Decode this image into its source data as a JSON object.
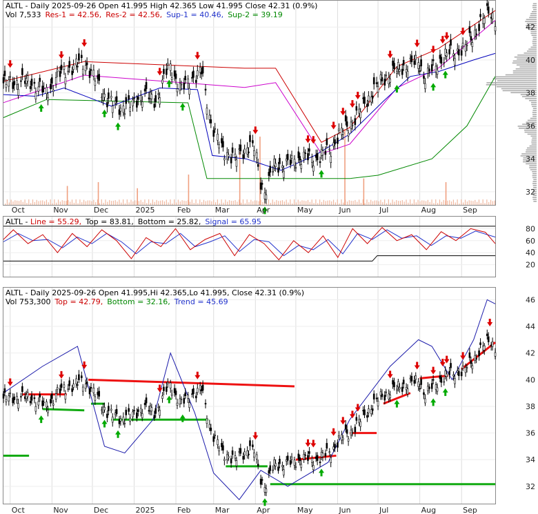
{
  "chart_data": [
    {
      "type": "candlestick",
      "panel": "price",
      "header": {
        "ticker": "ALTL",
        "line1": "ALTL - Daily 2025-09-26 Open 41.995  High 42.365  Low 41.995  Close 42.31 (0.9%)",
        "vol_label": "Vol 7,533",
        "res1_label": "Res-1 = 42.56,",
        "res2_label": "Res-2 = 42.56,",
        "sup1_label": "Sup-1 = 40.46,",
        "sup2_label": "Sup-2 = 39.19"
      },
      "x_labels": [
        "Oct",
        "Nov",
        "Dec",
        "2025",
        "Feb",
        "Mar",
        "Apr",
        "May",
        "Jun",
        "Jul",
        "Aug",
        "Sep"
      ],
      "y_ticks": [
        32,
        34,
        36,
        38,
        40,
        42
      ],
      "ylim": [
        31.2,
        43.6
      ],
      "close_points": [
        [
          "2024-09-26",
          38.6
        ],
        [
          "2024-10-15",
          38.7
        ],
        [
          "2024-10-28",
          38.0
        ],
        [
          "2024-11-05",
          39.0
        ],
        [
          "2024-11-12",
          39.4
        ],
        [
          "2024-11-25",
          39.9
        ],
        [
          "2024-12-05",
          38.6
        ],
        [
          "2024-12-12",
          37.6
        ],
        [
          "2024-12-20",
          37.1
        ],
        [
          "2024-12-31",
          37.3
        ],
        [
          "2025-01-08",
          38.0
        ],
        [
          "2025-01-17",
          37.5
        ],
        [
          "2025-01-27",
          39.7
        ],
        [
          "2025-02-05",
          38.2
        ],
        [
          "2025-02-13",
          38.9
        ],
        [
          "2025-02-20",
          39.3
        ],
        [
          "2025-02-27",
          36.2
        ],
        [
          "2025-03-07",
          34.6
        ],
        [
          "2025-03-17",
          34.0
        ],
        [
          "2025-03-27",
          34.8
        ],
        [
          "2025-04-01",
          34.6
        ],
        [
          "2025-04-04",
          32.8
        ],
        [
          "2025-04-08",
          32.0
        ],
        [
          "2025-04-15",
          33.6
        ],
        [
          "2025-04-25",
          33.7
        ],
        [
          "2025-05-06",
          34.1
        ],
        [
          "2025-05-16",
          34.0
        ],
        [
          "2025-05-27",
          34.6
        ],
        [
          "2025-06-03",
          35.6
        ],
        [
          "2025-06-12",
          36.2
        ],
        [
          "2025-06-23",
          37.6
        ],
        [
          "2025-07-01",
          38.5
        ],
        [
          "2025-07-10",
          39.2
        ],
        [
          "2025-07-21",
          39.6
        ],
        [
          "2025-07-31",
          39.9
        ],
        [
          "2025-08-05",
          38.9
        ],
        [
          "2025-08-14",
          39.8
        ],
        [
          "2025-08-22",
          40.4
        ],
        [
          "2025-09-02",
          40.6
        ],
        [
          "2025-09-12",
          41.8
        ],
        [
          "2025-09-22",
          43.1
        ],
        [
          "2025-09-26",
          42.31
        ]
      ],
      "resistance_line": [
        [
          "2024-09-26",
          38.7
        ],
        [
          "2024-11-25",
          39.9
        ],
        [
          "2025-03-24",
          39.5
        ],
        [
          "2025-04-16",
          39.5
        ],
        [
          "2025-05-20",
          35.0
        ],
        [
          "2025-06-10",
          35.9
        ],
        [
          "2025-07-15",
          39.6
        ],
        [
          "2025-08-15",
          40.7
        ],
        [
          "2025-09-26",
          43.0
        ]
      ],
      "band_line": [
        [
          "2024-09-26",
          37.9
        ],
        [
          "2024-10-20",
          37.8
        ],
        [
          "2024-11-10",
          38.3
        ],
        [
          "2024-12-15",
          37.2
        ],
        [
          "2025-01-20",
          38.3
        ],
        [
          "2025-02-17",
          38.2
        ],
        [
          "2025-02-28",
          34.2
        ],
        [
          "2025-03-25",
          34.0
        ],
        [
          "2025-04-20",
          33.3
        ],
        [
          "2025-05-15",
          34.2
        ],
        [
          "2025-06-10",
          35.5
        ],
        [
          "2025-07-05",
          37.5
        ],
        [
          "2025-07-25",
          39.0
        ],
        [
          "2025-08-15",
          39.3
        ],
        [
          "2025-09-10",
          40.0
        ],
        [
          "2025-09-26",
          40.4
        ]
      ],
      "support_line": [
        [
          "2024-09-26",
          36.5
        ],
        [
          "2024-10-28",
          37.6
        ],
        [
          "2025-02-10",
          37.4
        ],
        [
          "2025-02-24",
          32.8
        ],
        [
          "2025-06-10",
          32.8
        ],
        [
          "2025-07-01",
          33.0
        ],
        [
          "2025-08-10",
          34.0
        ],
        [
          "2025-09-05",
          36.0
        ],
        [
          "2025-09-26",
          39.0
        ]
      ],
      "volume_spikes": [
        [
          "2024-11-12",
          0.25
        ],
        [
          "2024-12-05",
          0.3
        ],
        [
          "2025-01-03",
          0.22
        ],
        [
          "2025-02-10",
          0.4
        ],
        [
          "2025-03-20",
          0.7
        ],
        [
          "2025-04-04",
          0.9
        ],
        [
          "2025-06-06",
          1.0
        ],
        [
          "2025-06-20",
          0.35
        ],
        [
          "2025-08-20",
          0.3
        ]
      ],
      "sell_signals": [
        "2024-10-01",
        "2024-11-08",
        "2024-11-25",
        "2025-01-20",
        "2025-02-17",
        "2025-04-01",
        "2025-05-10",
        "2025-05-14",
        "2025-05-29",
        "2025-06-05",
        "2025-06-12",
        "2025-06-16",
        "2025-07-10",
        "2025-07-30",
        "2025-08-11",
        "2025-08-18",
        "2025-08-21",
        "2025-09-02",
        "2025-09-22"
      ],
      "buy_signals": [
        "2024-10-24",
        "2024-12-10",
        "2024-12-20",
        "2025-01-27",
        "2025-02-06",
        "2025-04-08",
        "2025-05-20",
        "2025-07-15",
        "2025-08-11",
        "2025-08-20"
      ]
    },
    {
      "type": "line",
      "panel": "stochastic",
      "header": {
        "ticker": "ALTL",
        "line_label": "Line = 55.29,",
        "top_label": "Top = 83.81,",
        "bottom_label": "Bottom = 25.82,",
        "signal_label": "Signal = 65.95"
      },
      "y_ticks": [
        20,
        40,
        60,
        80
      ],
      "ylim": [
        0,
        100
      ],
      "series": [
        {
          "name": "Line",
          "values": [
            [
              0,
              62
            ],
            [
              2,
              78
            ],
            [
              5,
              55
            ],
            [
              8,
              70
            ],
            [
              11,
              40
            ],
            [
              14,
              72
            ],
            [
              17,
              50
            ],
            [
              20,
              78
            ],
            [
              23,
              60
            ],
            [
              26,
              30
            ],
            [
              29,
              65
            ],
            [
              32,
              50
            ],
            [
              35,
              80
            ],
            [
              38,
              45
            ],
            [
              41,
              62
            ],
            [
              44,
              72
            ],
            [
              47,
              35
            ],
            [
              50,
              70
            ],
            [
              53,
              55
            ],
            [
              56,
              28
            ],
            [
              59,
              60
            ],
            [
              62,
              40
            ],
            [
              65,
              68
            ],
            [
              68,
              32
            ],
            [
              71,
              80
            ],
            [
              74,
              55
            ],
            [
              77,
              82
            ],
            [
              80,
              60
            ],
            [
              83,
              70
            ],
            [
              86,
              45
            ],
            [
              89,
              75
            ],
            [
              92,
              60
            ],
            [
              95,
              80
            ],
            [
              98,
              74
            ],
            [
              100,
              55
            ]
          ]
        },
        {
          "name": "Signal",
          "values": [
            [
              0,
              58
            ],
            [
              3,
              72
            ],
            [
              6,
              60
            ],
            [
              9,
              62
            ],
            [
              12,
              48
            ],
            [
              15,
              66
            ],
            [
              18,
              55
            ],
            [
              21,
              72
            ],
            [
              24,
              58
            ],
            [
              27,
              38
            ],
            [
              30,
              58
            ],
            [
              33,
              55
            ],
            [
              36,
              72
            ],
            [
              39,
              50
            ],
            [
              42,
              58
            ],
            [
              45,
              68
            ],
            [
              48,
              42
            ],
            [
              51,
              62
            ],
            [
              54,
              58
            ],
            [
              57,
              35
            ],
            [
              60,
              52
            ],
            [
              63,
              45
            ],
            [
              66,
              62
            ],
            [
              69,
              38
            ],
            [
              72,
              72
            ],
            [
              75,
              62
            ],
            [
              78,
              78
            ],
            [
              81,
              64
            ],
            [
              84,
              68
            ],
            [
              87,
              52
            ],
            [
              90,
              68
            ],
            [
              93,
              64
            ],
            [
              96,
              76
            ],
            [
              100,
              66
            ]
          ]
        },
        {
          "name": "Top",
          "values": [
            [
              0,
              84
            ],
            [
              100,
              84
            ]
          ]
        },
        {
          "name": "Bottom",
          "values": [
            [
              0,
              26
            ],
            [
              75,
              26
            ],
            [
              76,
              35
            ],
            [
              100,
              35
            ]
          ]
        }
      ]
    },
    {
      "type": "candlestick",
      "panel": "trend",
      "header": {
        "ticker": "ALTL",
        "line1": "ALTL - Daily 2025-09-26 Open 41.995,Hi 42.365,Lo 41.995, Close 42.31 (0.9%)",
        "vol_label": "Vol 753,300",
        "top_label": "Top = 42.79,",
        "bottom_label": "Bottom = 32.16,",
        "trend_label": "Trend = 45.69"
      },
      "x_labels": [
        "Oct",
        "Nov",
        "Dec",
        "2025",
        "Feb",
        "Mar",
        "Apr",
        "May",
        "Jun",
        "Jul",
        "Aug",
        "Sep"
      ],
      "y_ticks": [
        32,
        34,
        36,
        38,
        40,
        42,
        44,
        46
      ],
      "ylim": [
        30.7,
        46.9
      ],
      "trend_line": [
        [
          "2024-09-26",
          39.0
        ],
        [
          "2024-10-25",
          41.0
        ],
        [
          "2024-11-20",
          42.5
        ],
        [
          "2024-12-10",
          35.0
        ],
        [
          "2024-12-25",
          34.5
        ],
        [
          "2025-01-15",
          37.0
        ],
        [
          "2025-01-28",
          42.0
        ],
        [
          "2025-02-15",
          37.5
        ],
        [
          "2025-03-01",
          33.0
        ],
        [
          "2025-03-20",
          31.0
        ],
        [
          "2025-04-05",
          33.2
        ],
        [
          "2025-04-25",
          32.0
        ],
        [
          "2025-05-25",
          33.8
        ],
        [
          "2025-06-10",
          37.0
        ],
        [
          "2025-07-10",
          41.0
        ],
        [
          "2025-07-31",
          43.0
        ],
        [
          "2025-08-10",
          42.5
        ],
        [
          "2025-08-25",
          40.0
        ],
        [
          "2025-09-10",
          43.0
        ],
        [
          "2025-09-20",
          46.0
        ],
        [
          "2025-09-26",
          45.69
        ]
      ],
      "red_segments": [
        [
          [
            "2024-10-10",
            38.9
          ],
          [
            "2024-11-12",
            38.9
          ]
        ],
        [
          [
            "2024-11-28",
            40.0
          ],
          [
            "2025-04-30",
            39.5
          ]
        ],
        [
          [
            "2025-05-01",
            34.0
          ],
          [
            "2025-05-31",
            34.3
          ]
        ],
        [
          [
            "2025-06-10",
            36.0
          ],
          [
            "2025-06-30",
            36.0
          ]
        ],
        [
          [
            "2025-07-05",
            38.2
          ],
          [
            "2025-07-25",
            39.0
          ]
        ],
        [
          [
            "2025-08-01",
            40.1
          ],
          [
            "2025-08-22",
            40.3
          ]
        ],
        [
          [
            "2025-09-01",
            40.8
          ],
          [
            "2025-09-26",
            42.8
          ]
        ]
      ],
      "green_segments": [
        [
          [
            "2024-09-26",
            34.3
          ],
          [
            "2024-10-15",
            34.3
          ]
        ],
        [
          [
            "2024-10-25",
            37.8
          ],
          [
            "2024-11-25",
            37.7
          ]
        ],
        [
          [
            "2024-11-30",
            38.2
          ],
          [
            "2024-12-10",
            38.2
          ]
        ],
        [
          [
            "2024-12-15",
            37.0
          ],
          [
            "2025-02-25",
            37.0
          ]
        ],
        [
          [
            "2025-03-10",
            33.5
          ],
          [
            "2025-04-10",
            33.5
          ]
        ],
        [
          [
            "2025-04-12",
            32.16
          ],
          [
            "2025-09-26",
            32.16
          ]
        ]
      ]
    }
  ]
}
